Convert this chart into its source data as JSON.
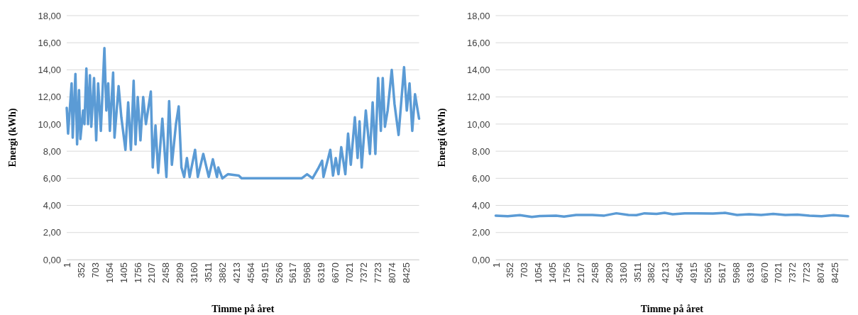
{
  "chart_data": [
    {
      "type": "line",
      "xlabel": "Timme på året",
      "ylabel": "Energi (kWh)",
      "xlim": [
        1,
        8760
      ],
      "ylim": [
        0,
        18
      ],
      "grid": "y",
      "line_style": "solid",
      "xticks": [
        1,
        352,
        703,
        1054,
        1405,
        1756,
        2107,
        2458,
        2809,
        3160,
        3511,
        3862,
        4213,
        4564,
        4915,
        5266,
        5617,
        5968,
        6319,
        6670,
        7021,
        7372,
        7723,
        8074,
        8425
      ],
      "yticks": [
        {
          "value": 0,
          "label": "0,00"
        },
        {
          "value": 2,
          "label": "2,00"
        },
        {
          "value": 4,
          "label": "4,00"
        },
        {
          "value": 6,
          "label": "6,00"
        },
        {
          "value": 8,
          "label": "8,00"
        },
        {
          "value": 10,
          "label": "10,00"
        },
        {
          "value": 12,
          "label": "12,00"
        },
        {
          "value": 14,
          "label": "14,00"
        },
        {
          "value": 16,
          "label": "16,00"
        },
        {
          "value": 18,
          "label": "18,00"
        }
      ],
      "series": [
        {
          "color": "#5b9bd5",
          "x": [
            1,
            35,
            123,
            150,
            218,
            259,
            307,
            341,
            408,
            442,
            490,
            531,
            578,
            612,
            680,
            734,
            782,
            850,
            938,
            986,
            1033,
            1074,
            1155,
            1189,
            1291,
            1359,
            1461,
            1529,
            1597,
            1665,
            1712,
            1766,
            1834,
            1902,
            1970,
            2092,
            2140,
            2208,
            2276,
            2378,
            2479,
            2547,
            2615,
            2717,
            2785,
            2853,
            2921,
            2989,
            3057,
            3192,
            3260,
            3396,
            3532,
            3634,
            3736,
            3769,
            3871,
            4007,
            4279,
            4347,
            5841,
            5976,
            6112,
            6248,
            6350,
            6384,
            6553,
            6621,
            6689,
            6757,
            6825,
            6927,
            6995,
            7063,
            7164,
            7232,
            7280,
            7334,
            7436,
            7538,
            7606,
            7674,
            7742,
            7810,
            7857,
            7911,
            7979,
            8081,
            8149,
            8251,
            8387,
            8455,
            8523,
            8591,
            8659,
            8760
          ],
          "values": [
            11.2,
            9.3,
            13.0,
            9.0,
            13.7,
            8.5,
            12.5,
            8.9,
            11.0,
            10.0,
            14.1,
            10.0,
            13.6,
            9.8,
            13.4,
            8.8,
            13.0,
            9.5,
            15.6,
            11.0,
            13.0,
            9.5,
            13.8,
            9.0,
            12.8,
            10.5,
            8.1,
            11.6,
            8.1,
            13.2,
            8.5,
            12.0,
            8.8,
            12.0,
            10.0,
            12.4,
            6.8,
            9.9,
            6.4,
            10.4,
            6.1,
            11.7,
            7.0,
            10.0,
            11.3,
            6.8,
            6.1,
            7.5,
            6.1,
            8.1,
            6.1,
            7.8,
            6.1,
            7.4,
            6.1,
            6.8,
            6.0,
            6.3,
            6.2,
            6.0,
            6.0,
            6.3,
            6.0,
            6.7,
            7.3,
            6.1,
            8.1,
            6.2,
            7.5,
            6.3,
            8.3,
            6.3,
            9.3,
            7.0,
            10.5,
            7.5,
            10.2,
            6.8,
            11.0,
            7.8,
            11.6,
            7.8,
            13.4,
            9.5,
            13.4,
            9.8,
            11.0,
            14.0,
            11.5,
            9.2,
            14.2,
            11.0,
            13.0,
            9.5,
            12.2,
            10.4
          ]
        }
      ]
    },
    {
      "type": "line",
      "xlabel": "Timme på året",
      "ylabel": "Energi (kWh)",
      "xlim": [
        1,
        8760
      ],
      "ylim": [
        0,
        18
      ],
      "grid": "y",
      "line_style": "solid",
      "xticks": [
        1,
        352,
        703,
        1054,
        1405,
        1756,
        2107,
        2458,
        2809,
        3160,
        3511,
        3862,
        4213,
        4564,
        4915,
        5266,
        5617,
        5968,
        6319,
        6670,
        7021,
        7372,
        7723,
        8074,
        8425
      ],
      "yticks": [
        {
          "value": 0,
          "label": "0,00"
        },
        {
          "value": 2,
          "label": "2,00"
        },
        {
          "value": 4,
          "label": "4,00"
        },
        {
          "value": 6,
          "label": "6,00"
        },
        {
          "value": 8,
          "label": "8,00"
        },
        {
          "value": 10,
          "label": "10,00"
        },
        {
          "value": 12,
          "label": "12,00"
        },
        {
          "value": 14,
          "label": "14,00"
        },
        {
          "value": 16,
          "label": "16,00"
        },
        {
          "value": 18,
          "label": "18,00"
        }
      ],
      "series": [
        {
          "color": "#5b9bd5",
          "x": [
            1,
            300,
            600,
            900,
            1100,
            1500,
            1700,
            2000,
            2400,
            2700,
            3000,
            3300,
            3500,
            3700,
            4000,
            4200,
            4400,
            4700,
            5000,
            5400,
            5700,
            6000,
            6300,
            6600,
            6900,
            7200,
            7500,
            7800,
            8100,
            8400,
            8760
          ],
          "values": [
            3.25,
            3.2,
            3.28,
            3.15,
            3.22,
            3.25,
            3.18,
            3.3,
            3.3,
            3.25,
            3.42,
            3.3,
            3.28,
            3.42,
            3.38,
            3.45,
            3.35,
            3.42,
            3.42,
            3.4,
            3.45,
            3.3,
            3.35,
            3.3,
            3.38,
            3.3,
            3.32,
            3.25,
            3.2,
            3.28,
            3.2
          ]
        }
      ]
    }
  ]
}
